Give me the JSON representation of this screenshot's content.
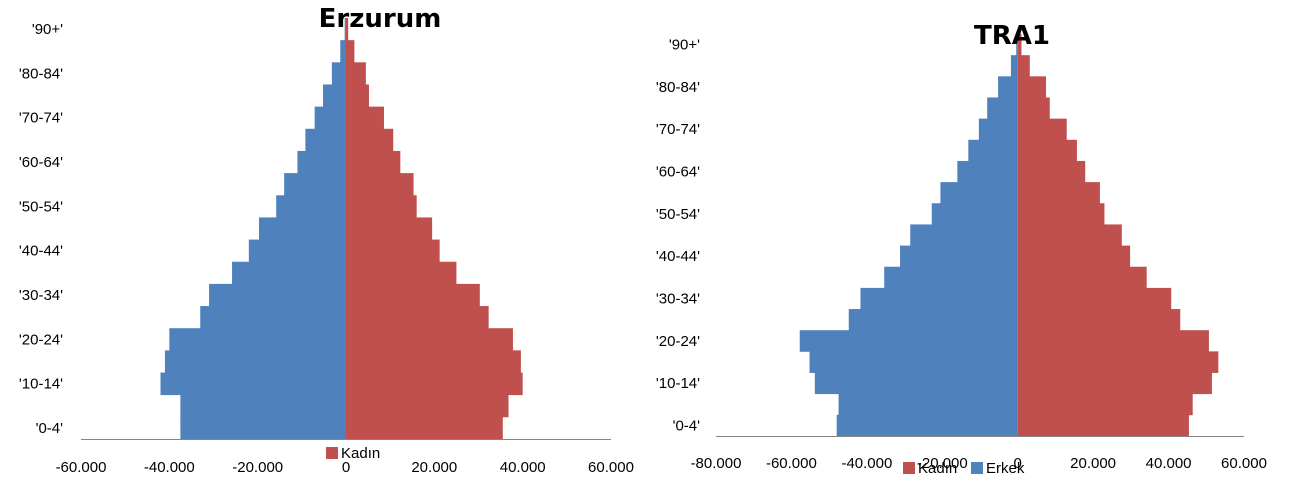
{
  "chart_data": [
    {
      "type": "bar",
      "orientation": "horizontal",
      "stacked": "diverging",
      "title": "Erzurum",
      "categories": [
        "'0-4'",
        "'5-9'",
        "'10-14'",
        "'15-19'",
        "'20-24'",
        "'25-29'",
        "'30-34'",
        "'35-39'",
        "'40-44'",
        "'45-49'",
        "'50-54'",
        "'55-59'",
        "'60-64'",
        "'65-69'",
        "'70-74'",
        "'75-79'",
        "'80-84'",
        "'85-89'",
        "'90+'"
      ],
      "tick_labels": [
        "'0-4'",
        "'10-14'",
        "'20-24'",
        "'30-34'",
        "'40-44'",
        "'50-54'",
        "'60-64'",
        "'70-74'",
        "'80-84'",
        "'90+'"
      ],
      "series": [
        {
          "name": "",
          "color": "#4f81bd",
          "values": [
            -37500,
            -37500,
            -42000,
            -41000,
            -40000,
            -33000,
            -31000,
            -25800,
            -22000,
            -19700,
            -15800,
            -14000,
            -11000,
            -9200,
            -7100,
            -5200,
            -3200,
            -1300,
            -300
          ]
        },
        {
          "name": "Kadın",
          "color": "#c0504d",
          "values": [
            35500,
            36800,
            40000,
            39600,
            37800,
            32300,
            30300,
            25000,
            21200,
            19500,
            16000,
            15300,
            12300,
            10700,
            8600,
            5200,
            4500,
            1900,
            500
          ]
        }
      ],
      "xlim": [
        -60000,
        60000
      ],
      "xticks": [
        "-60.000",
        "-40.000",
        "-20.000",
        "0",
        "20.000",
        "40.000",
        "60.000"
      ],
      "legend": [
        "Kadın"
      ],
      "legend_position": "bottom",
      "grid": false
    },
    {
      "type": "bar",
      "orientation": "horizontal",
      "stacked": "diverging",
      "title": "TRA1",
      "categories": [
        "'0-4'",
        "'5-9'",
        "'10-14'",
        "'15-19'",
        "'20-24'",
        "'25-29'",
        "'30-34'",
        "'35-39'",
        "'40-44'",
        "'45-49'",
        "'50-54'",
        "'55-59'",
        "'60-64'",
        "'65-69'",
        "'70-74'",
        "'75-79'",
        "'80-84'",
        "'85-89'",
        "'90+'"
      ],
      "tick_labels": [
        "'0-4'",
        "'10-14'",
        "'20-24'",
        "'30-34'",
        "'40-44'",
        "'50-54'",
        "'60-64'",
        "'70-74'",
        "'80-84'",
        "'90+'"
      ],
      "series": [
        {
          "name": "Erkek",
          "color": "#4f81bd",
          "values": [
            -48000,
            -47500,
            -53800,
            -55200,
            -57800,
            -44800,
            -41700,
            -35400,
            -31200,
            -28500,
            -22800,
            -20500,
            -16000,
            -13100,
            -10300,
            -8100,
            -5200,
            -1800,
            -400
          ]
        },
        {
          "name": "Kadın",
          "color": "#c0504d",
          "values": [
            45400,
            46400,
            51500,
            53200,
            50700,
            43100,
            40700,
            34200,
            29800,
            27600,
            23000,
            21800,
            17900,
            15700,
            13000,
            8500,
            7500,
            3200,
            1000
          ]
        }
      ],
      "xlim": [
        -80000,
        60000
      ],
      "xticks": [
        "-80.000",
        "-60.000",
        "-40.000",
        "-20.000",
        "0",
        "20.000",
        "40.000",
        "60.000"
      ],
      "legend": [
        "Kadın",
        "Erkek"
      ],
      "legend_position": "bottom",
      "grid": false
    }
  ]
}
